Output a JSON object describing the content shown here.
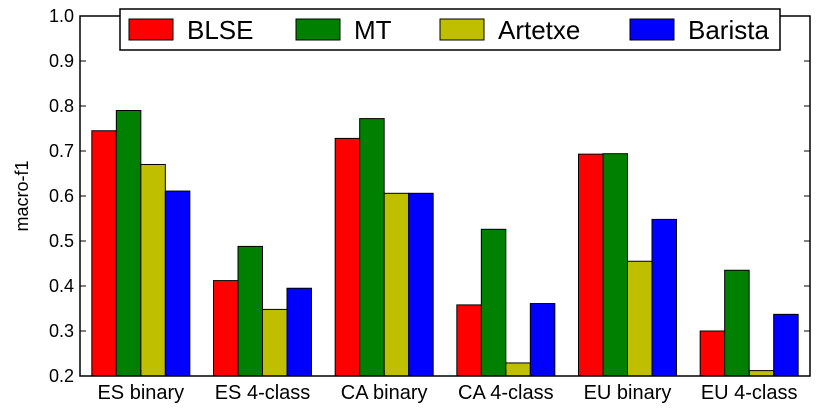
{
  "chart_data": {
    "type": "bar",
    "ylabel": "macro-f1",
    "ylim": [
      0.2,
      1.0
    ],
    "yticks": [
      "0.2",
      "0.3",
      "0.4",
      "0.5",
      "0.6",
      "0.7",
      "0.8",
      "0.9",
      "1.0"
    ],
    "categories": [
      "ES binary",
      "ES 4-class",
      "CA binary",
      "CA 4-class",
      "EU binary",
      "EU 4-class"
    ],
    "series": [
      {
        "name": "BLSE",
        "color": "#ff0000",
        "values": [
          0.745,
          0.412,
          0.728,
          0.358,
          0.693,
          0.3
        ]
      },
      {
        "name": "MT",
        "color": "#008000",
        "values": [
          0.79,
          0.488,
          0.772,
          0.526,
          0.694,
          0.435
        ]
      },
      {
        "name": "Artetxe",
        "color": "#bfbf00",
        "values": [
          0.67,
          0.348,
          0.606,
          0.229,
          0.455,
          0.212
        ]
      },
      {
        "name": "Barista",
        "color": "#0000ff",
        "values": [
          0.611,
          0.395,
          0.606,
          0.361,
          0.548,
          0.337
        ]
      }
    ],
    "legend": {
      "placement": "top-center"
    },
    "grid": false
  }
}
